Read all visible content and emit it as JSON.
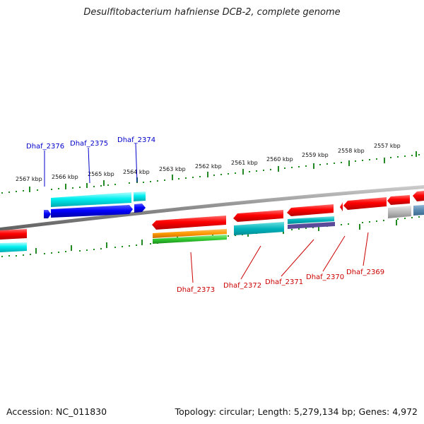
{
  "title": "Desulfitobacterium hafniense DCB-2, complete genome",
  "footer": {
    "accession": "Accession: NC_011830",
    "stats": "Topology: circular; Length: 5,279,134 bp; Genes: 4,972"
  },
  "scale_labels": [
    "2567 kbp",
    "2566 kbp",
    "2565 kbp",
    "2564 kbp",
    "2563 kbp",
    "2562 kbp",
    "2561 kbp",
    "2560 kbp",
    "2559 kbp",
    "2558 kbp",
    "2557 kbp"
  ],
  "gene_labels": {
    "top": [
      "Dhaf_2376",
      "Dhaf_2375",
      "Dhaf_2374"
    ],
    "bottom": [
      "Dhaf_2373",
      "Dhaf_2372",
      "Dhaf_2371",
      "Dhaf_2370",
      "Dhaf_2369"
    ]
  },
  "colors": {
    "forward_label": "#0000cc",
    "reverse_label": "#cc0000",
    "cds": "#ff0000",
    "cds_forward": "#0000ff",
    "cyan": "#00e5ee",
    "ticks": "#228b22",
    "backbone": "#888888"
  }
}
